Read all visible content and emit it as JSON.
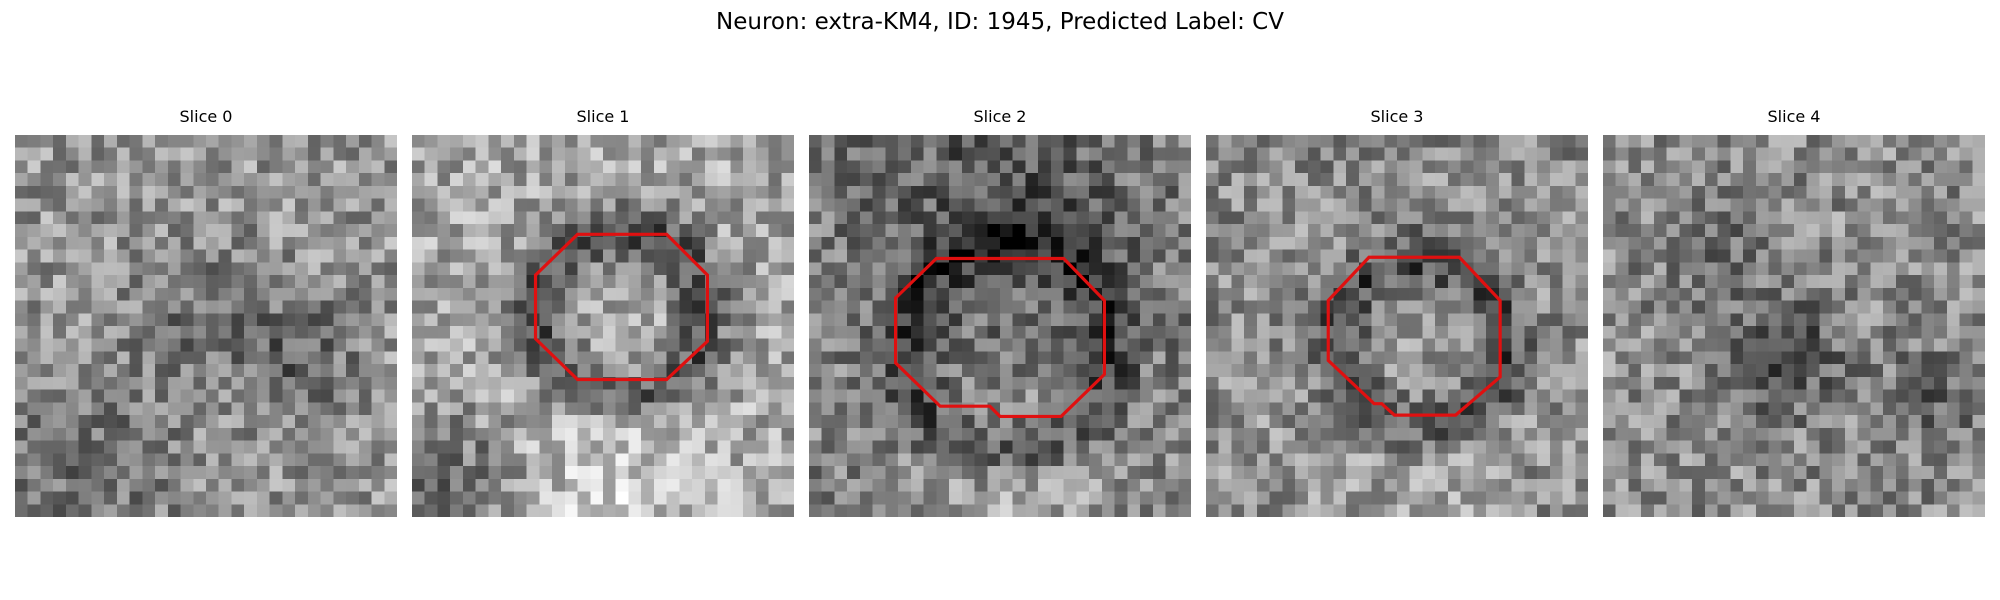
{
  "figure": {
    "title": "Neuron: extra-KM4, ID: 1945, Predicted Label: CV"
  },
  "panels": [
    {
      "title": "Slice 0",
      "contour": false
    },
    {
      "title": "Slice 1",
      "contour": true
    },
    {
      "title": "Slice 2",
      "contour": true
    },
    {
      "title": "Slice 3",
      "contour": true
    },
    {
      "title": "Slice 4",
      "contour": false
    }
  ],
  "colors": {
    "contour": "#e01010",
    "colormap": "grayscale"
  }
}
